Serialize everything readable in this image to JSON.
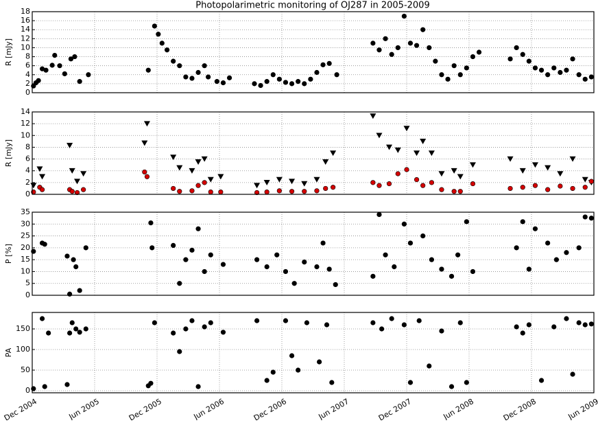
{
  "chart_data": [
    {
      "type": "scatter",
      "title": "Photopolarimetric monitoring of OJ287 in 2005-2009",
      "y_label": "R [mJy]",
      "grid": true,
      "xlim": [
        2004.92,
        2009.42
      ],
      "ylim": [
        0,
        18
      ],
      "yticks": [
        0,
        2,
        4,
        6,
        8,
        10,
        12,
        14,
        16,
        18
      ],
      "x": [
        2004.93,
        2004.95,
        2004.97,
        2005.0,
        2005.03,
        2005.08,
        2005.1,
        2005.14,
        2005.18,
        2005.23,
        2005.26,
        2005.3,
        2005.37,
        2005.85,
        2005.9,
        2005.93,
        2005.96,
        2006.0,
        2006.05,
        2006.1,
        2006.15,
        2006.2,
        2006.25,
        2006.3,
        2006.33,
        2006.4,
        2006.45,
        2006.5,
        2006.7,
        2006.75,
        2006.8,
        2006.85,
        2006.9,
        2006.95,
        2007.0,
        2007.05,
        2007.1,
        2007.15,
        2007.2,
        2007.25,
        2007.3,
        2007.36,
        2007.65,
        2007.7,
        2007.75,
        2007.8,
        2007.85,
        2007.9,
        2007.95,
        2008.0,
        2008.05,
        2008.1,
        2008.15,
        2008.2,
        2008.25,
        2008.3,
        2008.35,
        2008.4,
        2008.45,
        2008.5,
        2008.75,
        2008.8,
        2008.85,
        2008.9,
        2008.95,
        2009.0,
        2009.05,
        2009.1,
        2009.15,
        2009.2,
        2009.25,
        2009.3,
        2009.35,
        2009.4
      ],
      "series": [
        {
          "color": "#000000",
          "marker": "o",
          "values": [
            1.5,
            2.2,
            2.7,
            5.3,
            5.0,
            6.1,
            8.3,
            6.0,
            4.2,
            7.5,
            8.0,
            2.5,
            4.0,
            5.0,
            14.8,
            13.0,
            11.0,
            9.5,
            7.0,
            6.0,
            3.5,
            3.2,
            4.5,
            6.0,
            3.5,
            2.5,
            2.2,
            3.3,
            2.0,
            1.6,
            2.5,
            4.0,
            3.0,
            2.3,
            2.0,
            2.5,
            2.0,
            3.0,
            4.5,
            6.2,
            6.5,
            4.0,
            11.0,
            9.5,
            12.0,
            8.5,
            10.0,
            17.0,
            11.0,
            10.5,
            14.0,
            10.0,
            7.0,
            4.0,
            3.0,
            6.0,
            4.0,
            5.5,
            8.0,
            9.0,
            7.5,
            10.0,
            8.5,
            7.0,
            5.5,
            5.0,
            4.0,
            5.5,
            4.5,
            5.0,
            7.5,
            4.0,
            3.0,
            3.5
          ]
        }
      ]
    },
    {
      "type": "scatter",
      "y_label": "R [mJy]",
      "grid": true,
      "xlim": [
        2004.92,
        2009.42
      ],
      "ylim": [
        0,
        14
      ],
      "yticks": [
        0,
        2,
        4,
        6,
        8,
        10,
        12,
        14
      ],
      "x": [
        2004.93,
        2004.98,
        2005.0,
        2005.22,
        2005.24,
        2005.28,
        2005.33,
        2005.82,
        2005.84,
        2006.05,
        2006.1,
        2006.2,
        2006.25,
        2006.3,
        2006.35,
        2006.43,
        2006.72,
        2006.8,
        2006.9,
        2007.0,
        2007.1,
        2007.2,
        2007.27,
        2007.33,
        2007.65,
        2007.7,
        2007.78,
        2007.85,
        2007.92,
        2008.0,
        2008.05,
        2008.12,
        2008.2,
        2008.3,
        2008.35,
        2008.45,
        2008.75,
        2008.85,
        2008.95,
        2009.05,
        2009.15,
        2009.25,
        2009.35,
        2009.4
      ],
      "series": [
        {
          "color": "#000000",
          "marker": "v",
          "values": [
            1.5,
            4.3,
            3.0,
            8.3,
            4.0,
            2.2,
            3.5,
            8.7,
            12.0,
            6.3,
            4.5,
            4.0,
            5.5,
            6.0,
            2.5,
            3.0,
            1.5,
            2.0,
            2.5,
            2.2,
            1.8,
            2.5,
            5.5,
            7.0,
            13.3,
            10.0,
            8.0,
            7.5,
            11.2,
            7.0,
            9.0,
            7.0,
            3.5,
            4.0,
            3.0,
            5.0,
            6.0,
            4.0,
            5.0,
            4.5,
            3.5,
            6.0,
            2.5,
            2.0
          ]
        },
        {
          "color": "#d40000",
          "marker": "o",
          "values": [
            0.4,
            1.2,
            0.8,
            0.8,
            0.5,
            0.3,
            0.8,
            3.8,
            3.0,
            1.0,
            0.5,
            0.6,
            1.5,
            2.0,
            0.4,
            0.4,
            0.3,
            0.4,
            0.6,
            0.5,
            0.5,
            0.6,
            1.0,
            1.2,
            2.0,
            1.5,
            1.8,
            3.5,
            4.2,
            2.5,
            1.5,
            2.0,
            0.8,
            0.5,
            0.5,
            1.8,
            1.0,
            1.2,
            1.5,
            0.8,
            1.4,
            1.0,
            1.2,
            2.2
          ]
        }
      ]
    },
    {
      "type": "scatter",
      "y_label": "P [%]",
      "grid": true,
      "xlim": [
        2004.92,
        2009.42
      ],
      "ylim": [
        0,
        35
      ],
      "yticks": [
        0,
        5,
        10,
        15,
        20,
        25,
        30,
        35
      ],
      "x": [
        2004.93,
        2005.0,
        2005.02,
        2005.2,
        2005.22,
        2005.25,
        2005.27,
        2005.3,
        2005.35,
        2005.87,
        2005.88,
        2006.05,
        2006.1,
        2006.15,
        2006.2,
        2006.25,
        2006.3,
        2006.35,
        2006.45,
        2006.72,
        2006.8,
        2006.88,
        2006.95,
        2007.02,
        2007.1,
        2007.2,
        2007.25,
        2007.3,
        2007.35,
        2007.65,
        2007.7,
        2007.75,
        2007.82,
        2007.9,
        2007.95,
        2008.05,
        2008.12,
        2008.2,
        2008.28,
        2008.33,
        2008.4,
        2008.45,
        2008.8,
        2008.85,
        2008.9,
        2008.95,
        2009.05,
        2009.12,
        2009.2,
        2009.3,
        2009.35,
        2009.4
      ],
      "series": [
        {
          "color": "#000000",
          "marker": "o",
          "values": [
            18.5,
            22.0,
            21.5,
            16.5,
            0.5,
            15.0,
            12.0,
            2.0,
            20.0,
            30.5,
            20.0,
            21.0,
            5.0,
            15.0,
            19.0,
            28.0,
            10.0,
            17.0,
            13.0,
            15.0,
            12.0,
            17.0,
            10.0,
            5.0,
            14.0,
            12.0,
            22.0,
            11.0,
            4.5,
            8.0,
            34.0,
            17.0,
            12.0,
            30.0,
            22.0,
            25.0,
            15.0,
            11.0,
            8.0,
            17.0,
            31.0,
            10.0,
            20.0,
            31.0,
            11.0,
            28.0,
            22.0,
            15.0,
            18.0,
            20.0,
            33.0,
            32.5
          ]
        }
      ]
    },
    {
      "type": "scatter",
      "y_label": "PA",
      "grid": true,
      "xlim": [
        2004.92,
        2009.42
      ],
      "ylim": [
        -5,
        190
      ],
      "yticks": [
        0,
        50,
        100,
        150
      ],
      "xticks": [
        {
          "value": 2004.92,
          "label": "Dec 2004"
        },
        {
          "value": 2005.42,
          "label": "Jun 2005"
        },
        {
          "value": 2005.92,
          "label": "Dec 2005"
        },
        {
          "value": 2006.42,
          "label": "Jun 2006"
        },
        {
          "value": 2006.92,
          "label": "Dec 2006"
        },
        {
          "value": 2007.42,
          "label": "Jun 2007"
        },
        {
          "value": 2007.92,
          "label": "Dec 2007"
        },
        {
          "value": 2008.42,
          "label": "Jun 2008"
        },
        {
          "value": 2008.92,
          "label": "Dec 2008"
        },
        {
          "value": 2009.42,
          "label": "Jun 2009"
        }
      ],
      "x": [
        2004.93,
        2005.0,
        2005.02,
        2005.05,
        2005.2,
        2005.22,
        2005.24,
        2005.27,
        2005.3,
        2005.35,
        2005.85,
        2005.87,
        2005.9,
        2006.05,
        2006.1,
        2006.15,
        2006.2,
        2006.25,
        2006.3,
        2006.35,
        2006.45,
        2006.72,
        2006.8,
        2006.85,
        2006.95,
        2007.0,
        2007.05,
        2007.12,
        2007.22,
        2007.28,
        2007.32,
        2007.65,
        2007.72,
        2007.8,
        2007.9,
        2007.95,
        2008.02,
        2008.1,
        2008.2,
        2008.28,
        2008.35,
        2008.4,
        2008.8,
        2008.85,
        2008.9,
        2009.0,
        2009.1,
        2009.2,
        2009.25,
        2009.3,
        2009.35,
        2009.4
      ],
      "series": [
        {
          "color": "#000000",
          "marker": "o",
          "values": [
            5,
            175,
            10,
            140,
            15,
            140,
            165,
            150,
            142,
            150,
            12,
            18,
            165,
            140,
            95,
            150,
            170,
            10,
            155,
            165,
            142,
            170,
            25,
            45,
            170,
            85,
            50,
            165,
            70,
            160,
            20,
            165,
            150,
            175,
            160,
            20,
            170,
            60,
            145,
            10,
            165,
            20,
            155,
            140,
            160,
            25,
            155,
            175,
            40,
            165,
            160,
            162
          ]
        }
      ]
    }
  ]
}
